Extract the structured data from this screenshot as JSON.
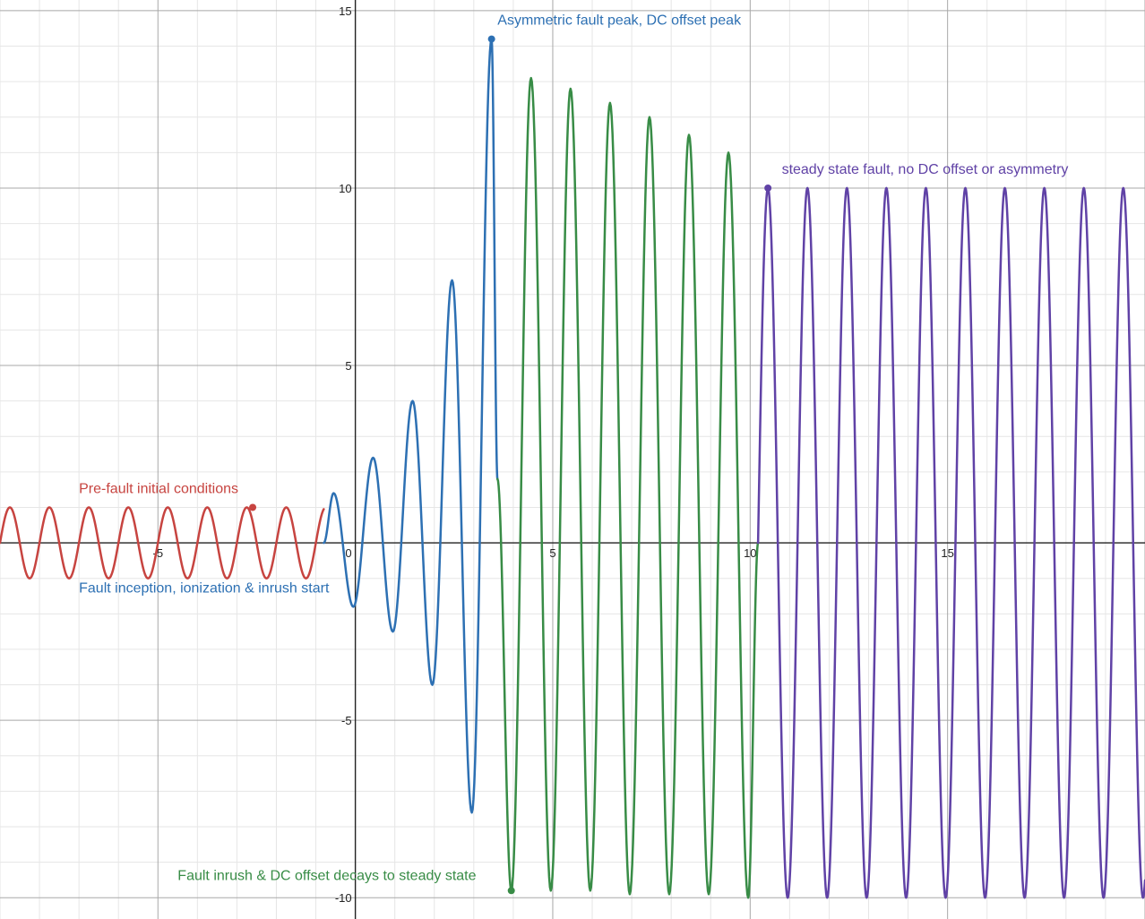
{
  "chart_data": {
    "type": "line",
    "title": "",
    "xlabel": "",
    "ylabel": "",
    "xlim": [
      -9,
      20
    ],
    "ylim": [
      -10.6,
      15.3
    ],
    "grid": true,
    "x_ticks": [
      -5,
      0,
      5,
      10,
      15
    ],
    "x_tick_labels": [
      "-5",
      "0",
      "5",
      "10",
      "15"
    ],
    "y_ticks": [
      -10,
      -5,
      5,
      10,
      15
    ],
    "y_tick_labels": [
      "-10",
      "-5",
      "5",
      "10",
      "15"
    ],
    "series": [
      {
        "color": "#c74440",
        "description": "sine wave, amplitude 1, period 1, from x=-9 to x=-0.8",
        "x_range": [
          -9,
          -0.8
        ],
        "amplitude": 1,
        "period": 1
      },
      {
        "color": "#2d70b3",
        "description": "growing oscillation from x=-0.8 to x=3.6, peaks 1.4, 2.4, 4.0, 7.4, 14.2; troughs -1.8, -2.5, -4.0, -7.6",
        "points": [
          [
            -0.8,
            0
          ],
          [
            -0.55,
            1.4
          ],
          [
            -0.05,
            -1.8
          ],
          [
            0.45,
            2.4
          ],
          [
            0.95,
            -2.5
          ],
          [
            1.45,
            4.0
          ],
          [
            1.95,
            -4.0
          ],
          [
            2.45,
            7.4
          ],
          [
            2.95,
            -7.6
          ],
          [
            3.45,
            14.2
          ],
          [
            3.6,
            1.8
          ]
        ]
      },
      {
        "color": "#388c46",
        "description": "decaying oscillation from x=3.6 to x=10.2, peaks 13.1, 12.8, 12.4, 12.0, 11.5, 11.0; troughs -9.8 to -10.0",
        "points": [
          [
            3.6,
            1.8
          ],
          [
            3.95,
            -9.8
          ],
          [
            4.45,
            13.1
          ],
          [
            4.95,
            -9.8
          ],
          [
            5.45,
            12.8
          ],
          [
            5.95,
            -9.8
          ],
          [
            6.45,
            12.4
          ],
          [
            6.95,
            -9.9
          ],
          [
            7.45,
            12.0
          ],
          [
            7.95,
            -9.9
          ],
          [
            8.45,
            11.5
          ],
          [
            8.95,
            -9.9
          ],
          [
            9.45,
            11.0
          ],
          [
            9.95,
            -10.0
          ],
          [
            10.2,
            0
          ]
        ]
      },
      {
        "color": "#6042a6",
        "description": "steady sine oscillation from x=10.2 to x=20, amplitude 10, period 1",
        "x_range": [
          10.2,
          20
        ],
        "amplitude": 10,
        "period": 1
      }
    ],
    "points": [
      {
        "x": -2.6,
        "y": 1.0,
        "color": "#c74440"
      },
      {
        "x": 3.45,
        "y": 14.2,
        "color": "#2d70b3"
      },
      {
        "x": 3.95,
        "y": -9.8,
        "color": "#388c46"
      },
      {
        "x": 10.45,
        "y": 10.0,
        "color": "#6042a6"
      }
    ],
    "annotations": [
      {
        "text": "Pre-fault initial conditions",
        "x": -7.0,
        "y": 1.4,
        "color": "#c74440"
      },
      {
        "text": "Fault inception, ionization & inrush start",
        "x": -7.0,
        "y": -1.4,
        "color": "#2d70b3"
      },
      {
        "text": "Asymmetric fault peak, DC offset peak",
        "x": 3.6,
        "y": 14.6,
        "color": "#2d70b3"
      },
      {
        "text": "Fault inrush & DC offset decays to steady state",
        "x": -4.5,
        "y": -9.5,
        "color": "#388c46"
      },
      {
        "text": "steady state fault, no DC offset or asymmetry",
        "x": 10.8,
        "y": 10.4,
        "color": "#6042a6"
      }
    ]
  }
}
